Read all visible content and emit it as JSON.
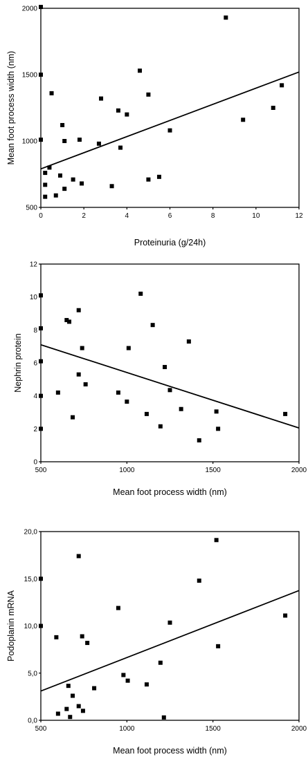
{
  "chart_data": [
    {
      "type": "scatter",
      "xlabel": "Proteinuria (g/24h)",
      "ylabel": "Mean foot process width (nm)",
      "xlim": [
        0,
        12
      ],
      "ylim": [
        500,
        2000
      ],
      "xticks": [
        0,
        2,
        4,
        6,
        8,
        10,
        12
      ],
      "yticks": [
        500,
        1000,
        1500,
        2000
      ],
      "xtick_labels": [
        "0",
        "2",
        "4",
        "6",
        "8",
        "10",
        "12"
      ],
      "ytick_labels": [
        "500",
        "1000",
        "1500",
        "2000"
      ],
      "grid": false,
      "fit_line": {
        "x": [
          0,
          12
        ],
        "y": [
          790,
          1520
        ]
      },
      "points": [
        {
          "x": 0.0,
          "y": 2010
        },
        {
          "x": 0.0,
          "y": 1500
        },
        {
          "x": 0.0,
          "y": 1010
        },
        {
          "x": 0.2,
          "y": 760
        },
        {
          "x": 0.2,
          "y": 670
        },
        {
          "x": 0.2,
          "y": 580
        },
        {
          "x": 0.4,
          "y": 800
        },
        {
          "x": 0.5,
          "y": 1360
        },
        {
          "x": 0.7,
          "y": 590
        },
        {
          "x": 0.9,
          "y": 740
        },
        {
          "x": 1.0,
          "y": 1120
        },
        {
          "x": 1.1,
          "y": 1000
        },
        {
          "x": 1.1,
          "y": 640
        },
        {
          "x": 1.5,
          "y": 710
        },
        {
          "x": 1.8,
          "y": 1010
        },
        {
          "x": 1.9,
          "y": 680
        },
        {
          "x": 2.7,
          "y": 980
        },
        {
          "x": 2.8,
          "y": 1320
        },
        {
          "x": 3.3,
          "y": 660
        },
        {
          "x": 3.6,
          "y": 1230
        },
        {
          "x": 3.7,
          "y": 950
        },
        {
          "x": 4.0,
          "y": 1200
        },
        {
          "x": 4.6,
          "y": 1530
        },
        {
          "x": 5.0,
          "y": 1350
        },
        {
          "x": 5.0,
          "y": 710
        },
        {
          "x": 5.5,
          "y": 730
        },
        {
          "x": 6.0,
          "y": 1080
        },
        {
          "x": 8.6,
          "y": 1930
        },
        {
          "x": 9.4,
          "y": 1160
        },
        {
          "x": 10.8,
          "y": 1250
        },
        {
          "x": 11.2,
          "y": 1420
        }
      ]
    },
    {
      "type": "scatter",
      "xlabel": "Mean foot process width (nm)",
      "ylabel": "Nephrin protein",
      "xlim": [
        500,
        2000
      ],
      "ylim": [
        0,
        12
      ],
      "xticks": [
        500,
        1000,
        1500,
        2000
      ],
      "yticks": [
        0,
        2,
        4,
        6,
        8,
        10,
        12
      ],
      "xtick_labels": [
        "500",
        "1000",
        "1500",
        "2000"
      ],
      "ytick_labels": [
        "0",
        "2",
        "4",
        "6",
        "8",
        "10",
        "12"
      ],
      "grid": false,
      "fit_line": {
        "x": [
          500,
          2000
        ],
        "y": [
          7.1,
          2.05
        ]
      },
      "points": [
        {
          "x": 500,
          "y": 10.1
        },
        {
          "x": 500,
          "y": 8.1
        },
        {
          "x": 500,
          "y": 6.1
        },
        {
          "x": 500,
          "y": 4.0
        },
        {
          "x": 500,
          "y": 2.0
        },
        {
          "x": 600,
          "y": 4.2
        },
        {
          "x": 650,
          "y": 8.6
        },
        {
          "x": 665,
          "y": 8.5
        },
        {
          "x": 685,
          "y": 2.7
        },
        {
          "x": 720,
          "y": 9.2
        },
        {
          "x": 720,
          "y": 5.3
        },
        {
          "x": 740,
          "y": 6.9
        },
        {
          "x": 760,
          "y": 4.7
        },
        {
          "x": 950,
          "y": 4.2
        },
        {
          "x": 1000,
          "y": 3.65
        },
        {
          "x": 1010,
          "y": 6.9
        },
        {
          "x": 1080,
          "y": 10.2
        },
        {
          "x": 1115,
          "y": 2.9
        },
        {
          "x": 1150,
          "y": 8.3
        },
        {
          "x": 1195,
          "y": 2.15
        },
        {
          "x": 1220,
          "y": 5.75
        },
        {
          "x": 1250,
          "y": 4.35
        },
        {
          "x": 1315,
          "y": 3.2
        },
        {
          "x": 1360,
          "y": 7.3
        },
        {
          "x": 1420,
          "y": 1.3
        },
        {
          "x": 1520,
          "y": 3.05
        },
        {
          "x": 1530,
          "y": 2.0
        },
        {
          "x": 1920,
          "y": 2.9
        }
      ]
    },
    {
      "type": "scatter",
      "xlabel": "Mean foot process width (nm)",
      "ylabel": "Podoplanin mRNA",
      "xlim": [
        500,
        2000
      ],
      "ylim": [
        0,
        20
      ],
      "xticks": [
        500,
        1000,
        1500,
        2000
      ],
      "yticks": [
        0,
        5,
        10,
        15,
        20
      ],
      "xtick_labels": [
        "500",
        "1000",
        "1500",
        "2000"
      ],
      "ytick_labels": [
        "0,0",
        "5,0",
        "10,0",
        "15,0",
        "20,0"
      ],
      "grid": false,
      "fit_line": {
        "x": [
          500,
          2000
        ],
        "y": [
          3.1,
          13.75
        ]
      },
      "points": [
        {
          "x": 500,
          "y": 15.0
        },
        {
          "x": 500,
          "y": 10.0
        },
        {
          "x": 590,
          "y": 8.8
        },
        {
          "x": 600,
          "y": 0.7
        },
        {
          "x": 650,
          "y": 1.2
        },
        {
          "x": 660,
          "y": 3.65
        },
        {
          "x": 670,
          "y": 0.35
        },
        {
          "x": 685,
          "y": 2.6
        },
        {
          "x": 720,
          "y": 17.4
        },
        {
          "x": 720,
          "y": 1.5
        },
        {
          "x": 740,
          "y": 8.9
        },
        {
          "x": 745,
          "y": 1.0
        },
        {
          "x": 770,
          "y": 8.2
        },
        {
          "x": 810,
          "y": 3.4
        },
        {
          "x": 950,
          "y": 11.9
        },
        {
          "x": 980,
          "y": 4.8
        },
        {
          "x": 1005,
          "y": 4.2
        },
        {
          "x": 1115,
          "y": 3.8
        },
        {
          "x": 1195,
          "y": 6.1
        },
        {
          "x": 1215,
          "y": 0.3
        },
        {
          "x": 1250,
          "y": 10.35
        },
        {
          "x": 1420,
          "y": 14.8
        },
        {
          "x": 1520,
          "y": 19.1
        },
        {
          "x": 1530,
          "y": 7.85
        },
        {
          "x": 1920,
          "y": 11.1
        }
      ]
    }
  ]
}
